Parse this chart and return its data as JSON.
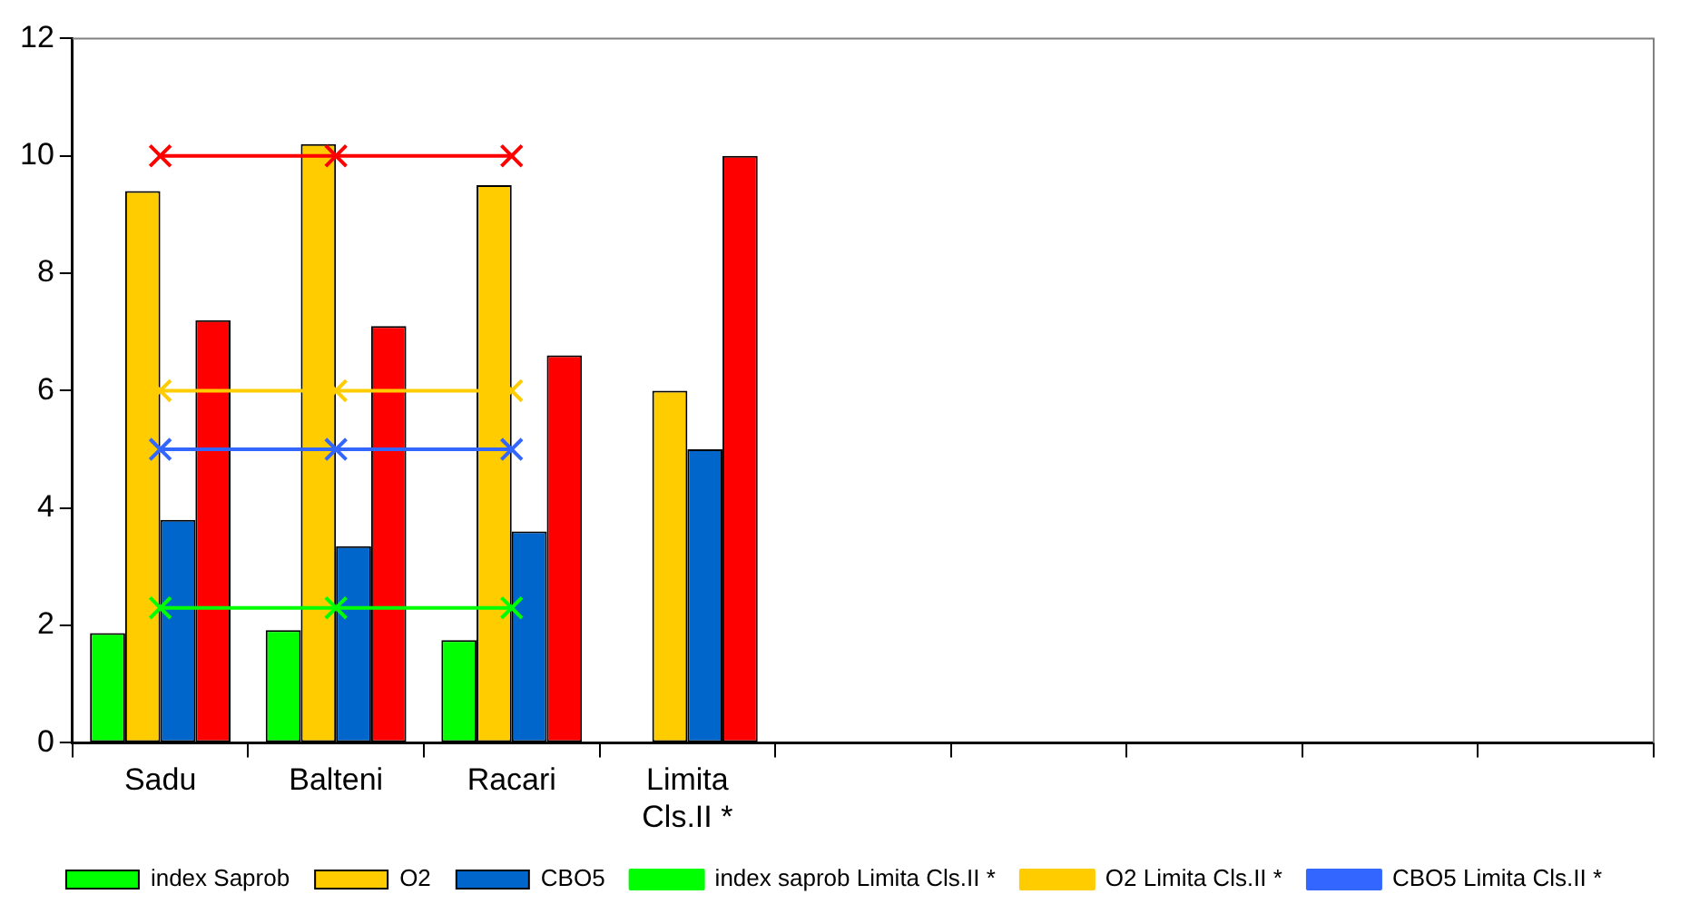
{
  "chart_data": {
    "type": "bar",
    "categories": [
      "Sadu",
      "Balteni",
      "Racari",
      "Limita Cls.II *",
      null,
      null,
      null,
      null,
      null
    ],
    "series": [
      {
        "name": "index Saprob",
        "color": "#00ff00",
        "values": [
          1.87,
          1.92,
          1.75,
          null,
          null,
          null,
          null,
          null,
          null
        ]
      },
      {
        "name": "O2",
        "color": "#ffcc00",
        "values": [
          9.4,
          10.2,
          9.5,
          6,
          null,
          null,
          null,
          null,
          null
        ]
      },
      {
        "name": "CBO5",
        "color": "#0066cc",
        "values": [
          3.8,
          3.35,
          3.6,
          5,
          null,
          null,
          null,
          null,
          null
        ]
      },
      {
        "color": "#ff0000",
        "values": [
          7.2,
          7.1,
          6.6,
          10,
          null,
          null,
          null,
          null,
          null
        ]
      },
      {
        "name": "index saprob Limita Cls.II *",
        "type": "line",
        "marker": "cross",
        "color": "#00ff00",
        "values": [
          2.3,
          2.3,
          2.3,
          null,
          null,
          null,
          null,
          null,
          null
        ]
      },
      {
        "name": "O2 Limita Cls.II *",
        "type": "line",
        "marker": "cross",
        "color": "#ffcc00",
        "values": [
          6,
          6,
          6,
          null,
          null,
          null,
          null,
          null,
          null
        ]
      },
      {
        "name": "CBO5 Limita Cls.II *",
        "type": "line",
        "marker": "cross",
        "color": "#3366ff",
        "values": [
          5,
          5,
          5,
          null,
          null,
          null,
          null,
          null,
          null
        ]
      },
      {
        "type": "line",
        "marker": "cross",
        "color": "#ff0000",
        "values": [
          10,
          10,
          10,
          null,
          null,
          null,
          null,
          null,
          null
        ]
      }
    ],
    "ylim": [
      0,
      12
    ],
    "yticks": [
      0,
      2,
      4,
      6,
      8,
      10,
      12
    ],
    "grid": false,
    "legend": "bottom",
    "line_style": "solid"
  }
}
